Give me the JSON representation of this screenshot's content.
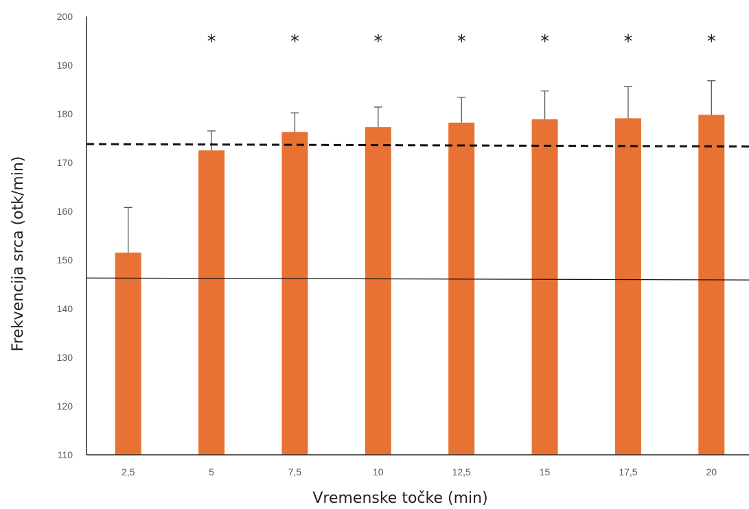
{
  "chart_data": {
    "type": "bar",
    "title": "",
    "xlabel": "Vremenske točke (min)",
    "ylabel": "Frekvencija srca (otk/min)",
    "categories": [
      "2,5",
      "5",
      "7,5",
      "10",
      "12,5",
      "15",
      "17,5",
      "20"
    ],
    "values": [
      151.5,
      172.5,
      176.3,
      177.3,
      178.2,
      178.9,
      179.1,
      179.8
    ],
    "error_upper": [
      9.3,
      4.0,
      3.9,
      4.1,
      5.2,
      5.8,
      6.5,
      7.0
    ],
    "significance": [
      "",
      "*",
      "*",
      "*",
      "*",
      "*",
      "*",
      "*"
    ],
    "ylim": [
      110,
      200
    ],
    "yticks": [
      110,
      120,
      130,
      140,
      150,
      160,
      170,
      180,
      190,
      200
    ],
    "reference_lines": [
      {
        "style": "dashed",
        "y_start": 173.8,
        "y_end": 173.3
      },
      {
        "style": "solid",
        "y_start": 146.3,
        "y_end": 145.9
      }
    ],
    "grid": false,
    "legend": "none",
    "colors": {
      "bar": "#E87234",
      "error_bar": "#555555",
      "reference_line": "#111111",
      "axis": "#262626"
    }
  }
}
